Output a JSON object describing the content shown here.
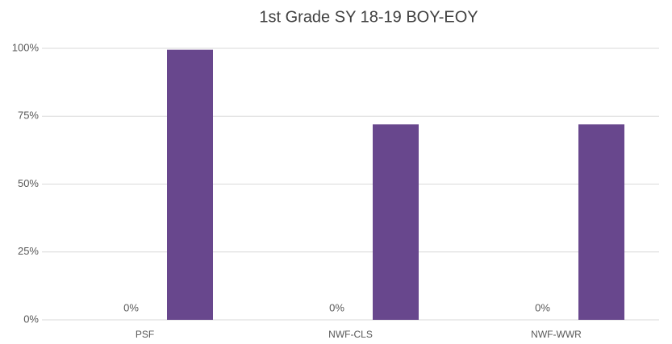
{
  "chart_data": {
    "type": "bar",
    "title": "1st Grade SY 18-19 BOY-EOY",
    "categories": [
      "PSF",
      "NWF-CLS",
      "NWF-WWR"
    ],
    "series": [
      {
        "color": "#4472c4",
        "values": [
          0,
          0,
          0
        ],
        "value_labels": [
          "0%",
          "0%",
          "0%"
        ]
      },
      {
        "color": "#68478d",
        "values": [
          99.5,
          72,
          72
        ]
      }
    ],
    "ylim": [
      0,
      100
    ],
    "yticks": [
      {
        "value": 0,
        "label": "0%"
      },
      {
        "value": 25,
        "label": "25%"
      },
      {
        "value": 50,
        "label": "50%"
      },
      {
        "value": 75,
        "label": "75%"
      },
      {
        "value": 100,
        "label": "100%"
      }
    ],
    "grid": true
  }
}
